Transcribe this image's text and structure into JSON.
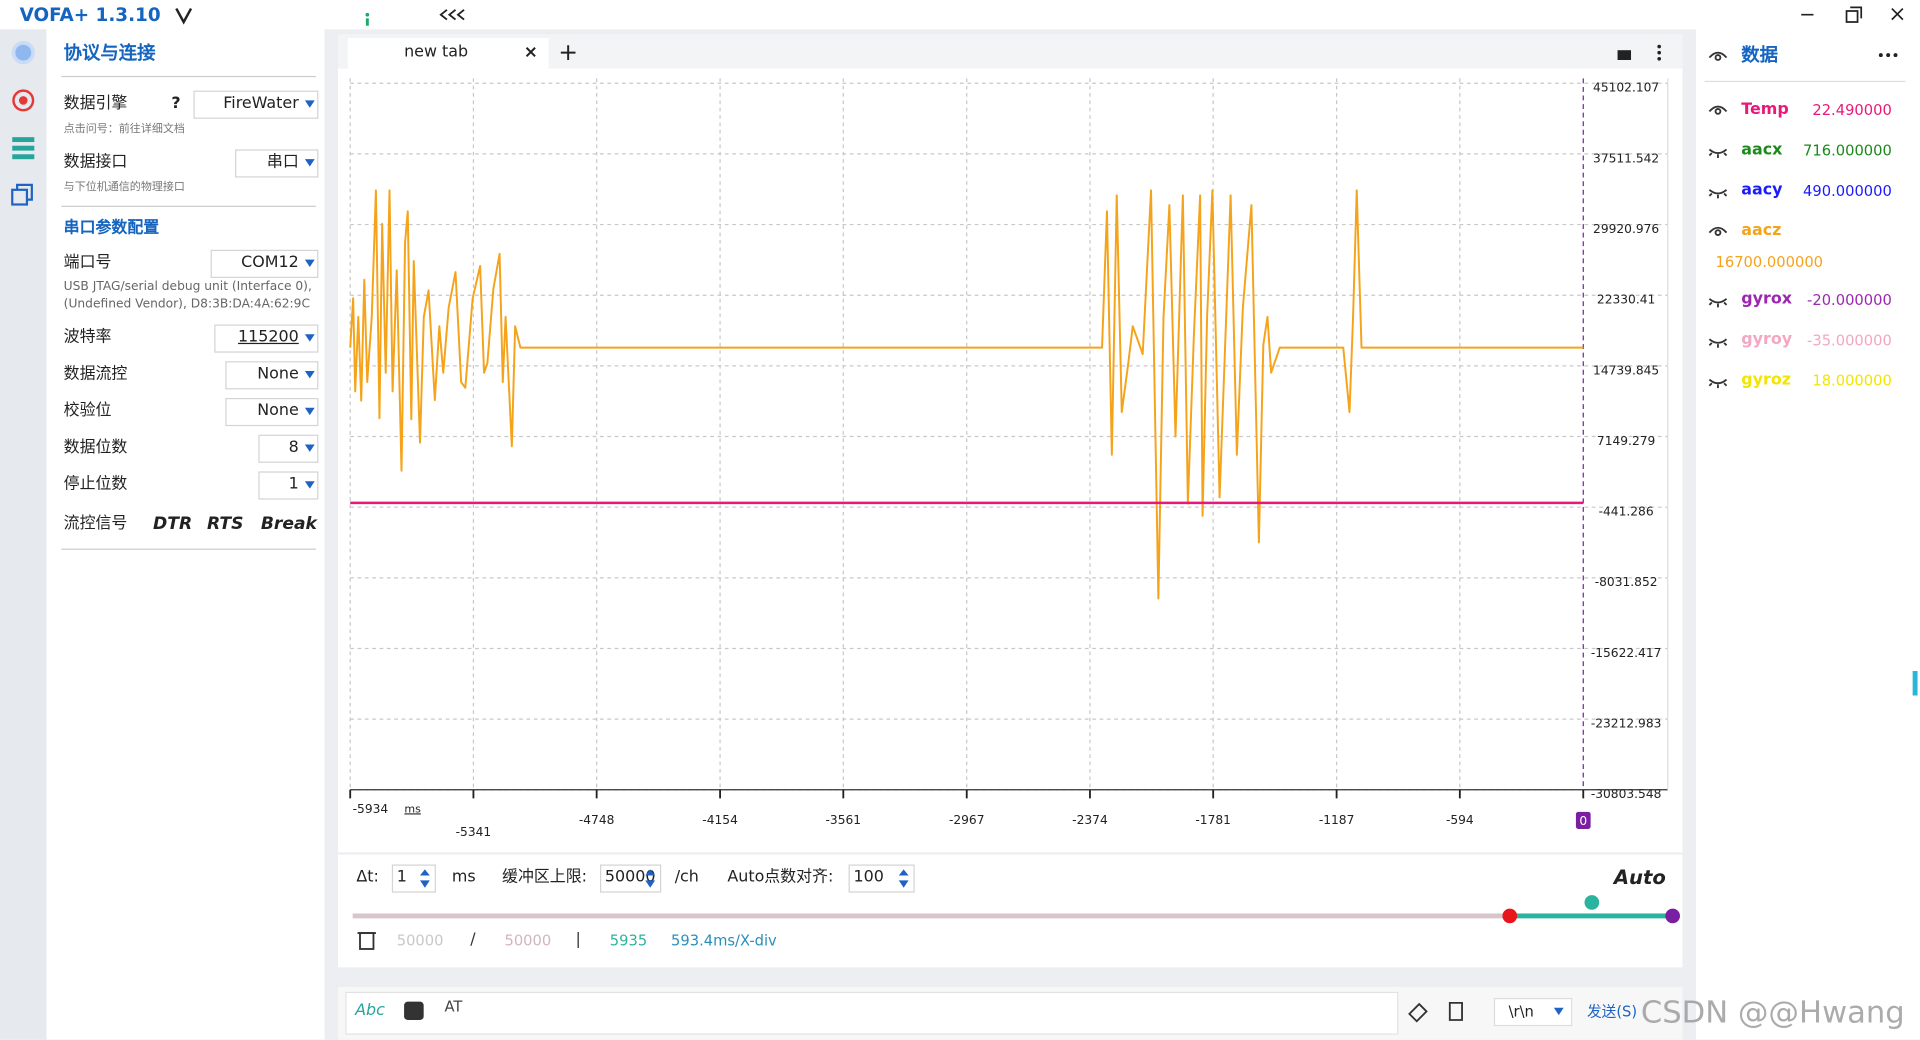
{
  "app": {
    "title": "VOFA+ 1.3.10"
  },
  "left_panel": {
    "title": "协议与连接",
    "engine_label": "数据引擎",
    "engine_help": "?",
    "engine_value": "FireWater",
    "engine_hint": "点击问号：前往详细文档",
    "interface_label": "数据接口",
    "interface_value": "串口",
    "interface_hint": "与下位机通信的物理接口",
    "serial_title": "串口参数配置",
    "port_label": "端口号",
    "port_value": "COM12",
    "port_desc": [
      "USB JTAG/serial debug unit (Interface 0),",
      "(Undefined Vendor), D8:3B:DA:4A:62:9C"
    ],
    "params": [
      {
        "label": "波特率",
        "value": "115200"
      },
      {
        "label": "数据流控",
        "value": "None"
      },
      {
        "label": "校验位",
        "value": "None"
      },
      {
        "label": "数据位数",
        "value": "8"
      },
      {
        "label": "停止位数",
        "value": "1"
      }
    ],
    "flow_label": "流控信号",
    "flow_buttons": [
      "DTR",
      "RTS",
      "Break"
    ]
  },
  "tab": {
    "name": "new tab"
  },
  "chart_data": {
    "type": "line",
    "xlabel": "ms",
    "xlim": [
      -5934,
      0
    ],
    "xticks": [
      -5934,
      -5341,
      -4748,
      -4154,
      -3561,
      -2967,
      -2374,
      -1781,
      -1187,
      -594,
      0
    ],
    "ylim": [
      -30803.548,
      45102.107
    ],
    "yticks": [
      45102.107,
      37511.542,
      29920.976,
      22330.41,
      14739.845,
      7149.279,
      -441.286,
      -8031.852,
      -15622.417,
      -23212.983,
      -30803.548
    ],
    "grid": true,
    "legend_title": "数据",
    "series": [
      {
        "name": "Temp",
        "color": "#e8197a",
        "current_value": "22.490000",
        "visible": true,
        "x": [
          -5934,
          0
        ],
        "values": [
          22.49,
          22.49
        ]
      },
      {
        "name": "aacx",
        "color": "#1a8a1a",
        "current_value": "716.000000",
        "visible": false
      },
      {
        "name": "aacy",
        "color": "#1a1aff",
        "current_value": "490.000000",
        "visible": false
      },
      {
        "name": "aacz",
        "color": "#f5a31a",
        "current_value": "16700.000000",
        "visible": true,
        "x": [
          -5934,
          -5920,
          -5910,
          -5895,
          -5881,
          -5866,
          -5852,
          -5830,
          -5810,
          -5793,
          -5780,
          -5763,
          -5745,
          -5730,
          -5710,
          -5687,
          -5670,
          -5657,
          -5640,
          -5628,
          -5598,
          -5580,
          -5557,
          -5527,
          -5505,
          -5486,
          -5460,
          -5427,
          -5400,
          -5380,
          -5345,
          -5309,
          -5290,
          -5274,
          -5245,
          -5215,
          -5200,
          -5186,
          -5156,
          -5140,
          -5115,
          -2316,
          -2292,
          -2269,
          -2245,
          -2221,
          -2190,
          -2168,
          -2120,
          -2080,
          -2045,
          -2020,
          -1992,
          -1962,
          -1927,
          -1903,
          -1874,
          -1844,
          -1832,
          -1810,
          -1785,
          -1750,
          -1720,
          -1697,
          -1667,
          -1638,
          -1597,
          -1561,
          -1540,
          -1520,
          -1502,
          -1461,
          -1155,
          -1125,
          -1108,
          -1090,
          -1067,
          0
        ],
        "values": [
          16700,
          22000,
          12000,
          20000,
          11000,
          24000,
          13000,
          20000,
          33586,
          9112,
          30000,
          14000,
          33586,
          12000,
          25000,
          3485,
          28000,
          31360,
          9000,
          26000,
          6495,
          20000,
          22854,
          11076,
          19000,
          14000,
          21000,
          24818,
          13000,
          12384,
          22000,
          25476,
          14000,
          15002,
          23000,
          26780,
          13000,
          20000,
          6102,
          19000,
          16700,
          16700,
          31360,
          5186,
          33061,
          9767,
          15000,
          19000,
          16000,
          33586,
          -10256,
          20000,
          32014,
          7149,
          33061,
          -48,
          18000,
          33061,
          -1357,
          20000,
          33586,
          606,
          19000,
          33061,
          5186,
          21000,
          32014,
          -4236,
          17000,
          20000,
          14000,
          16700,
          16700,
          9767,
          20000,
          33586,
          16700,
          16700
        ]
      },
      {
        "name": "gyrox",
        "color": "#9c27b0",
        "current_value": "-20.000000",
        "visible": false
      },
      {
        "name": "gyroy",
        "color": "#f4a7c3",
        "current_value": "-35.000000",
        "visible": false
      },
      {
        "name": "gyroz",
        "color": "#f2e600",
        "current_value": "18.000000",
        "visible": false
      }
    ]
  },
  "controls": {
    "dt_label": "Δt:",
    "dt_value": "1",
    "dt_unit": "ms",
    "buffer_label": "缓冲区上限:",
    "buffer_value": "50000",
    "buffer_unit": "/ch",
    "auto_label": "Auto点数对齐:",
    "auto_value": "100",
    "auto_mode": "Auto"
  },
  "status": {
    "used": "50000",
    "sep": "/",
    "limit": "50000",
    "bar": "|",
    "count": "5935",
    "div": "593.4ms/X-div"
  },
  "send_bar": {
    "mode": "Abc",
    "input": "AT",
    "ending": "\\r\\n",
    "send": "发送(S)"
  },
  "watermark": "CSDN @@Hwang"
}
